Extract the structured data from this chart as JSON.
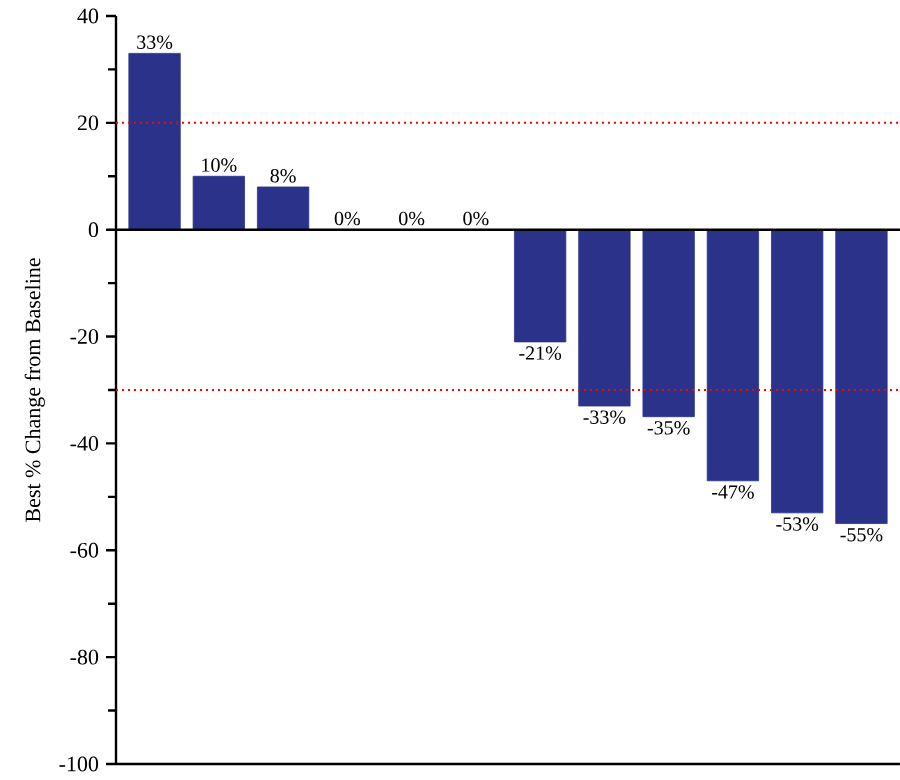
{
  "chart_data": {
    "type": "bar",
    "ylabel": "Best % Change from Baseline",
    "categories": [
      null,
      null,
      null,
      null,
      null,
      null,
      null,
      null,
      null,
      null,
      null,
      null
    ],
    "values": [
      33,
      10,
      8,
      0,
      0,
      0,
      -21,
      -33,
      -35,
      -47,
      -53,
      -55
    ],
    "value_labels": [
      "33%",
      "10%",
      "8%",
      "0%",
      "0%",
      "0%",
      "-21%",
      "-33%",
      "-35%",
      "-47%",
      "-53%",
      "-55%"
    ],
    "color": "#2b3289",
    "ylim": [
      -100,
      40
    ],
    "yticks": [
      -100,
      -80,
      -60,
      -40,
      -20,
      0,
      20,
      40
    ],
    "ref_lines": [
      {
        "axis": "y",
        "value": 20,
        "color": "#ff0000",
        "line_style": "dotted"
      },
      {
        "axis": "y",
        "value": -30,
        "color": "#ff0000",
        "line_style": "dotted"
      }
    ],
    "grid": false
  }
}
